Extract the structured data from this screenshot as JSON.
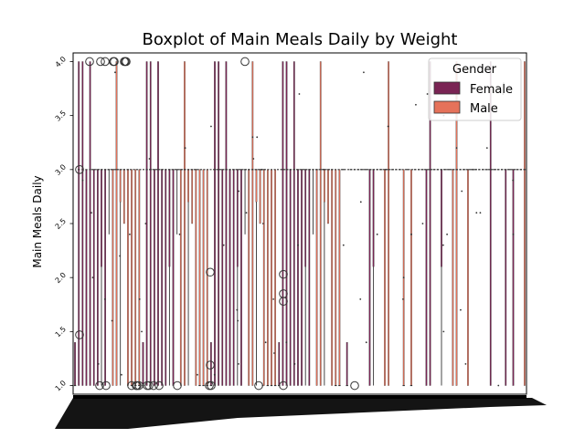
{
  "chart_data": {
    "type": "box",
    "title": "Boxplot of Main Meals Daily by Weight",
    "xlabel": "",
    "ylabel": "Main Meals Daily",
    "ylim": [
      0.92,
      4.08
    ],
    "yticks": [
      "1.0",
      "1.5",
      "2.0",
      "2.5",
      "3.0",
      "3.5",
      "4.0"
    ],
    "ytick_values": [
      1.0,
      1.5,
      2.0,
      2.5,
      3.0,
      3.5,
      4.0
    ],
    "x_tick_labels_legible": false,
    "legend": {
      "title": "Gender",
      "position": "top-right",
      "entries": [
        {
          "name": "Female",
          "color": "#7a2454"
        },
        {
          "name": "Male",
          "color": "#e5725a"
        }
      ]
    },
    "series": [
      {
        "name": "Female",
        "color": "#7a2454",
        "boxes": [
          {
            "q1": 1.0,
            "median": 1.0,
            "q3": 1.4,
            "whisker_low": 1.0,
            "whisker_high": 1.4
          },
          {
            "q1": 1.0,
            "median": 3.0,
            "q3": 4.0,
            "whisker_low": 1.0,
            "whisker_high": 4.0
          },
          {
            "q1": 1.0,
            "median": 3.0,
            "q3": 4.0,
            "whisker_low": 1.0,
            "whisker_high": 4.0
          },
          {
            "q1": 1.0,
            "median": 3.0,
            "q3": 3.0,
            "whisker_low": 1.0,
            "whisker_high": 3.0
          },
          {
            "q1": 1.0,
            "median": 3.0,
            "q3": 4.0,
            "whisker_low": 1.0,
            "whisker_high": 4.0
          },
          {
            "q1": 1.0,
            "median": 3.0,
            "q3": 3.0,
            "whisker_low": 1.0,
            "whisker_high": 3.0
          },
          {
            "q1": 1.0,
            "median": 3.0,
            "q3": 3.0,
            "whisker_low": 1.0,
            "whisker_high": 3.0
          },
          {
            "q1": 2.1,
            "median": 3.0,
            "q3": 3.0,
            "whisker_low": 1.0,
            "whisker_high": 3.0
          },
          {
            "q1": 1.0,
            "median": 3.0,
            "q3": 3.0,
            "whisker_low": 1.0,
            "whisker_high": 3.0
          },
          {
            "q1": 3.0,
            "median": 3.0,
            "q3": 3.0,
            "whisker_low": 2.4,
            "whisker_high": 3.0
          }
        ]
      },
      {
        "name": "Male",
        "color": "#e5725a",
        "boxes": [
          {
            "q1": 1.0,
            "median": 3.0,
            "q3": 3.0,
            "whisker_low": 1.0,
            "whisker_high": 3.0
          },
          {
            "q1": 1.0,
            "median": 3.0,
            "q3": 4.0,
            "whisker_low": 1.0,
            "whisker_high": 4.0
          },
          {
            "q1": 2.7,
            "median": 3.0,
            "q3": 3.0,
            "whisker_low": 1.0,
            "whisker_high": 3.0
          },
          {
            "q1": 2.5,
            "median": 3.0,
            "q3": 3.0,
            "whisker_low": 2.5,
            "whisker_high": 3.0
          },
          {
            "q1": 1.0,
            "median": 3.0,
            "q3": 3.0,
            "whisker_low": 1.0,
            "whisker_high": 3.0
          },
          {
            "q1": 1.0,
            "median": 1.0,
            "q3": 3.0,
            "whisker_low": 1.0,
            "whisker_high": 3.0
          },
          {
            "q1": 1.0,
            "median": 1.0,
            "q3": 3.0,
            "whisker_low": 1.0,
            "whisker_high": 3.0
          },
          {
            "q1": 1.0,
            "median": 1.0,
            "q3": 3.0,
            "whisker_low": 1.0,
            "whisker_high": 3.0
          }
        ]
      }
    ],
    "outliers": [
      {
        "series": "Female",
        "y": 3.0
      },
      {
        "series": "Female",
        "y": 1.47
      },
      {
        "series": "Female",
        "y": 4.0
      },
      {
        "series": "Female",
        "y": 4.0
      },
      {
        "series": "Female",
        "y": 4.0
      },
      {
        "series": "Female",
        "y": 4.0
      },
      {
        "series": "Female",
        "y": 4.0
      },
      {
        "series": "Female",
        "y": 4.0
      },
      {
        "series": "Female",
        "y": 4.0
      },
      {
        "series": "Female",
        "y": 4.0
      },
      {
        "series": "Female",
        "y": 1.0
      },
      {
        "series": "Female",
        "y": 1.0
      },
      {
        "series": "Female",
        "y": 1.0
      },
      {
        "series": "Female",
        "y": 1.0
      },
      {
        "series": "Female",
        "y": 1.0
      },
      {
        "series": "Female",
        "y": 1.0
      },
      {
        "series": "Female",
        "y": 1.0
      },
      {
        "series": "Female",
        "y": 1.0
      },
      {
        "series": "Female",
        "y": 1.0
      },
      {
        "series": "Female",
        "y": 1.0
      },
      {
        "series": "Female",
        "y": 1.0
      },
      {
        "series": "Male",
        "y": 2.05
      },
      {
        "series": "Male",
        "y": 1.19
      },
      {
        "series": "Male",
        "y": 1.0
      },
      {
        "series": "Male",
        "y": 1.0
      },
      {
        "series": "Male",
        "y": 4.0
      },
      {
        "series": "Male",
        "y": 1.0
      },
      {
        "series": "Male",
        "y": 2.03
      },
      {
        "series": "Male",
        "y": 1.85
      },
      {
        "series": "Male",
        "y": 1.78
      },
      {
        "series": "Male",
        "y": 1.0
      },
      {
        "series": "Male",
        "y": 1.0
      }
    ]
  }
}
